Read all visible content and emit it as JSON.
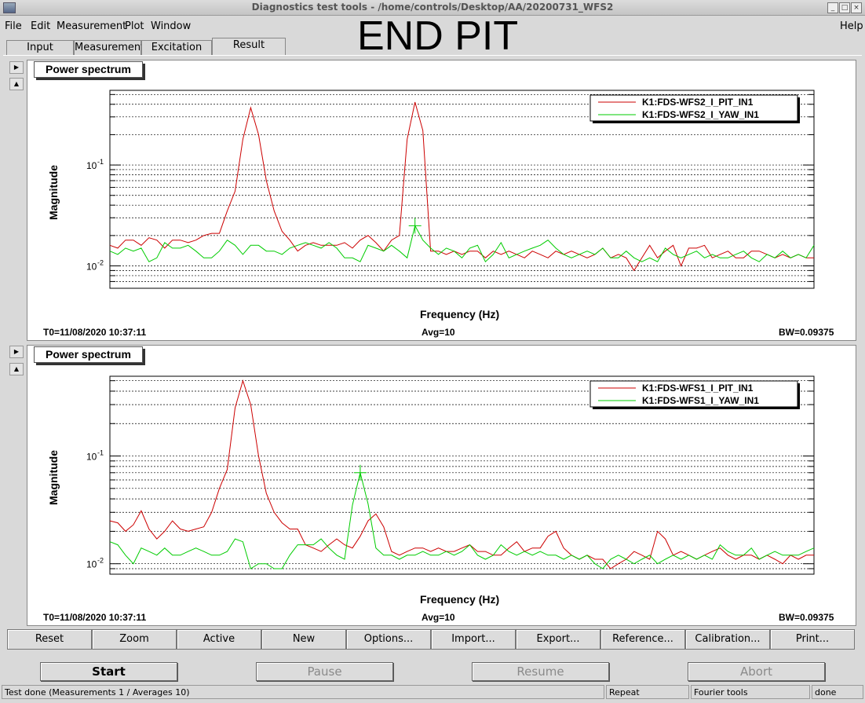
{
  "window": {
    "title": "Diagnostics test tools - /home/controls/Desktop/AA/20200731_WFS2"
  },
  "menubar": {
    "items": [
      {
        "label": "File"
      },
      {
        "label": "Edit"
      },
      {
        "label": "Measurement"
      },
      {
        "label": "Plot"
      },
      {
        "label": "Window"
      }
    ],
    "help": "Help"
  },
  "overlay_title": "END PIT",
  "tabs": [
    {
      "label": "Input"
    },
    {
      "label": "Measurement"
    },
    {
      "label": "Excitation"
    },
    {
      "label": "Result",
      "active": true
    }
  ],
  "pads": [
    {
      "title": "Power spectrum",
      "ylabel": "Magnitude",
      "xlabel": "Frequency (Hz)",
      "t0": "T0=11/08/2020 10:37:11",
      "avg": "Avg=10",
      "bw": "BW=0.09375",
      "ticks": [
        "10",
        "-1",
        "10",
        "-2"
      ]
    },
    {
      "title": "Power spectrum",
      "ylabel": "Magnitude",
      "xlabel": "Frequency (Hz)",
      "t0": "T0=11/08/2020 10:37:11",
      "avg": "Avg=10",
      "bw": "BW=0.09375",
      "ticks": [
        "10",
        "-1",
        "10",
        "-2"
      ]
    }
  ],
  "chart_data": [
    {
      "type": "line",
      "title": "Power spectrum",
      "xlabel": "Frequency (Hz)",
      "ylabel": "Magnitude",
      "log_y": true,
      "ylim": [
        0.006,
        0.55
      ],
      "grid": true,
      "legend_position": "top-right",
      "x": [
        0,
        1,
        2,
        3,
        4,
        5,
        6,
        7,
        8,
        9,
        10,
        11,
        12,
        13,
        14,
        15,
        16,
        17,
        18,
        19,
        20,
        21,
        22,
        23,
        24,
        25,
        26,
        27,
        28,
        29,
        30,
        31,
        32,
        33,
        34,
        35,
        36,
        37,
        38,
        39,
        40,
        41,
        42,
        43,
        44,
        45,
        46,
        47,
        48,
        49,
        50,
        51,
        52,
        53,
        54,
        55,
        56,
        57,
        58,
        59,
        60,
        61,
        62,
        63,
        64,
        65,
        66,
        67,
        68,
        69,
        70,
        71,
        72,
        73,
        74,
        75,
        76,
        77,
        78,
        79,
        80,
        81,
        82,
        83,
        84,
        85,
        86,
        87,
        88,
        89,
        90
      ],
      "series": [
        {
          "name": "K1:FDS-WFS2_I_PIT_IN1",
          "color": "#cc0000",
          "values": [
            0.016,
            0.015,
            0.018,
            0.018,
            0.016,
            0.019,
            0.018,
            0.015,
            0.018,
            0.018,
            0.017,
            0.018,
            0.02,
            0.021,
            0.021,
            0.035,
            0.055,
            0.18,
            0.37,
            0.2,
            0.07,
            0.035,
            0.022,
            0.018,
            0.014,
            0.016,
            0.017,
            0.016,
            0.016,
            0.016,
            0.017,
            0.015,
            0.018,
            0.02,
            0.017,
            0.014,
            0.018,
            0.02,
            0.18,
            0.42,
            0.22,
            0.014,
            0.014,
            0.013,
            0.014,
            0.013,
            0.014,
            0.014,
            0.012,
            0.014,
            0.013,
            0.014,
            0.013,
            0.012,
            0.014,
            0.013,
            0.012,
            0.014,
            0.013,
            0.014,
            0.013,
            0.012,
            0.013,
            0.015,
            0.012,
            0.013,
            0.012,
            0.009,
            0.012,
            0.016,
            0.012,
            0.014,
            0.016,
            0.01,
            0.015,
            0.015,
            0.016,
            0.012,
            0.013,
            0.014,
            0.012,
            0.012,
            0.014,
            0.014,
            0.013,
            0.012,
            0.013,
            0.012,
            0.013,
            0.012,
            0.012
          ]
        },
        {
          "name": "K1:FDS-WFS2_I_YAW_IN1",
          "color": "#00cc00",
          "values": [
            0.014,
            0.013,
            0.015,
            0.014,
            0.015,
            0.011,
            0.012,
            0.017,
            0.015,
            0.015,
            0.016,
            0.014,
            0.012,
            0.012,
            0.014,
            0.018,
            0.016,
            0.013,
            0.016,
            0.016,
            0.014,
            0.014,
            0.013,
            0.015,
            0.016,
            0.017,
            0.016,
            0.015,
            0.017,
            0.015,
            0.012,
            0.012,
            0.011,
            0.016,
            0.015,
            0.014,
            0.016,
            0.014,
            0.012,
            0.025,
            0.018,
            0.015,
            0.013,
            0.015,
            0.014,
            0.012,
            0.015,
            0.016,
            0.011,
            0.013,
            0.017,
            0.012,
            0.013,
            0.014,
            0.015,
            0.016,
            0.018,
            0.015,
            0.013,
            0.012,
            0.013,
            0.014,
            0.013,
            0.015,
            0.012,
            0.012,
            0.014,
            0.012,
            0.011,
            0.012,
            0.011,
            0.015,
            0.013,
            0.012,
            0.013,
            0.014,
            0.012,
            0.013,
            0.012,
            0.012,
            0.013,
            0.014,
            0.012,
            0.011,
            0.013,
            0.012,
            0.014,
            0.012,
            0.013,
            0.012,
            0.016
          ]
        }
      ]
    },
    {
      "type": "line",
      "title": "Power spectrum",
      "xlabel": "Frequency (Hz)",
      "ylabel": "Magnitude",
      "log_y": true,
      "ylim": [
        0.008,
        0.55
      ],
      "grid": true,
      "legend_position": "top-right",
      "x": [
        0,
        1,
        2,
        3,
        4,
        5,
        6,
        7,
        8,
        9,
        10,
        11,
        12,
        13,
        14,
        15,
        16,
        17,
        18,
        19,
        20,
        21,
        22,
        23,
        24,
        25,
        26,
        27,
        28,
        29,
        30,
        31,
        32,
        33,
        34,
        35,
        36,
        37,
        38,
        39,
        40,
        41,
        42,
        43,
        44,
        45,
        46,
        47,
        48,
        49,
        50,
        51,
        52,
        53,
        54,
        55,
        56,
        57,
        58,
        59,
        60,
        61,
        62,
        63,
        64,
        65,
        66,
        67,
        68,
        69,
        70,
        71,
        72,
        73,
        74,
        75,
        76,
        77,
        78,
        79,
        80,
        81,
        82,
        83,
        84,
        85,
        86,
        87,
        88,
        89,
        90
      ],
      "series": [
        {
          "name": "K1:FDS-WFS1_I_PIT_IN1",
          "color": "#cc0000",
          "values": [
            0.025,
            0.024,
            0.02,
            0.023,
            0.031,
            0.021,
            0.017,
            0.02,
            0.025,
            0.021,
            0.02,
            0.021,
            0.022,
            0.03,
            0.05,
            0.075,
            0.28,
            0.5,
            0.3,
            0.1,
            0.045,
            0.03,
            0.024,
            0.021,
            0.021,
            0.015,
            0.014,
            0.013,
            0.015,
            0.017,
            0.015,
            0.014,
            0.018,
            0.025,
            0.029,
            0.022,
            0.013,
            0.012,
            0.013,
            0.014,
            0.014,
            0.013,
            0.014,
            0.013,
            0.013,
            0.014,
            0.015,
            0.013,
            0.013,
            0.012,
            0.012,
            0.014,
            0.016,
            0.013,
            0.014,
            0.014,
            0.018,
            0.02,
            0.014,
            0.012,
            0.011,
            0.012,
            0.011,
            0.011,
            0.009,
            0.01,
            0.011,
            0.013,
            0.012,
            0.011,
            0.02,
            0.017,
            0.012,
            0.013,
            0.012,
            0.011,
            0.012,
            0.013,
            0.014,
            0.012,
            0.011,
            0.012,
            0.012,
            0.011,
            0.012,
            0.011,
            0.01,
            0.012,
            0.011,
            0.012,
            0.012
          ]
        },
        {
          "name": "K1:FDS-WFS1_I_YAW_IN1",
          "color": "#00cc00",
          "values": [
            0.016,
            0.015,
            0.012,
            0.01,
            0.014,
            0.013,
            0.012,
            0.014,
            0.012,
            0.012,
            0.013,
            0.014,
            0.013,
            0.012,
            0.012,
            0.013,
            0.017,
            0.016,
            0.009,
            0.01,
            0.01,
            0.009,
            0.009,
            0.012,
            0.015,
            0.015,
            0.015,
            0.017,
            0.014,
            0.012,
            0.011,
            0.035,
            0.07,
            0.036,
            0.014,
            0.012,
            0.012,
            0.011,
            0.012,
            0.012,
            0.013,
            0.012,
            0.012,
            0.013,
            0.012,
            0.013,
            0.015,
            0.012,
            0.011,
            0.012,
            0.015,
            0.013,
            0.012,
            0.013,
            0.012,
            0.013,
            0.012,
            0.012,
            0.011,
            0.012,
            0.011,
            0.012,
            0.01,
            0.009,
            0.011,
            0.012,
            0.011,
            0.01,
            0.011,
            0.012,
            0.01,
            0.011,
            0.012,
            0.011,
            0.012,
            0.011,
            0.012,
            0.011,
            0.015,
            0.013,
            0.012,
            0.012,
            0.014,
            0.011,
            0.012,
            0.013,
            0.012,
            0.012,
            0.012,
            0.013,
            0.014
          ]
        }
      ]
    }
  ],
  "toolbar": {
    "buttons": [
      {
        "label": "Reset"
      },
      {
        "label": "Zoom"
      },
      {
        "label": "Active"
      },
      {
        "label": "New"
      },
      {
        "label": "Options..."
      },
      {
        "label": "Import..."
      },
      {
        "label": "Export..."
      },
      {
        "label": "Reference..."
      },
      {
        "label": "Calibration..."
      },
      {
        "label": "Print..."
      }
    ]
  },
  "controls": {
    "start": "Start",
    "pause": "Pause",
    "resume": "Resume",
    "abort": "Abort"
  },
  "statusbar": {
    "message": "Test done (Measurements 1 / Averages 10)",
    "mode": "Repeat",
    "tool": "Fourier tools",
    "state": "done"
  }
}
